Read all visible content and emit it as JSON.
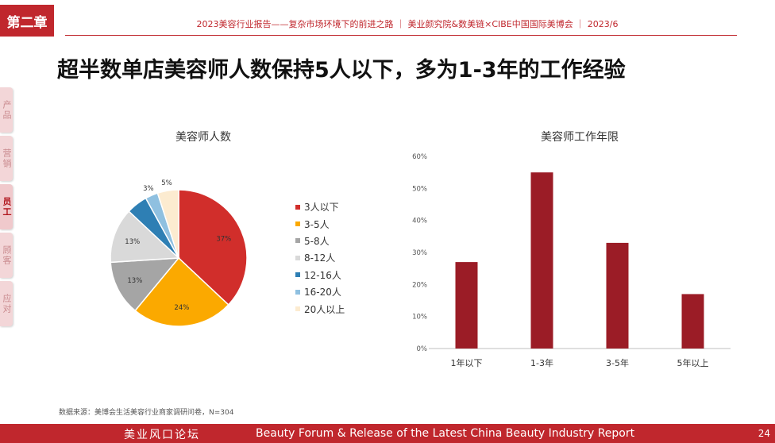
{
  "chapter_badge": "第二章",
  "header": "2023美容行业报告——复杂市场环境下的前进之路 ｜ 美业颜究院&数美链×CIBE中国国际美博会 ｜ 2023/6",
  "title": "超半数单店美容师人数保持5人以下，多为1-3年的工作经验",
  "side_tabs": [
    {
      "label": "产品",
      "active": false
    },
    {
      "label": "营销",
      "active": false
    },
    {
      "label": "员工",
      "active": true
    },
    {
      "label": "顾客",
      "active": false
    },
    {
      "label": "应对",
      "active": false
    }
  ],
  "footnote": "数据来源：美博会生活美容行业商家调研问卷，N=304",
  "footer": {
    "cn": "美业风口论坛",
    "en": "Beauty Forum & Release of the Latest China Beauty Industry Report",
    "page": "24"
  },
  "chart_data": [
    {
      "type": "pie",
      "title": "美容师人数",
      "categories": [
        "3人以下",
        "3-5人",
        "5-8人",
        "8-12人",
        "12-16人",
        "16-20人",
        "20人以上"
      ],
      "values": [
        37,
        24,
        13,
        13,
        5,
        3,
        5
      ],
      "value_labels": [
        "37%",
        "24%",
        "13%",
        "13%",
        "5%",
        "3%",
        "5%"
      ],
      "colors": [
        "#d12e2b",
        "#fba900",
        "#a5a5a5",
        "#d9d9d9",
        "#2e7fb4",
        "#8fc0e0",
        "#fcebd0"
      ],
      "legend_position": "right"
    },
    {
      "type": "bar",
      "title": "美容师工作年限",
      "categories": [
        "1年以下",
        "1-3年",
        "3-5年",
        "5年以上"
      ],
      "values": [
        27,
        55,
        33,
        17
      ],
      "ylim": [
        0,
        60
      ],
      "yticks": [
        "0%",
        "10%",
        "20%",
        "30%",
        "40%",
        "50%",
        "60%"
      ],
      "color": "#9b1c26",
      "grid": false
    }
  ]
}
